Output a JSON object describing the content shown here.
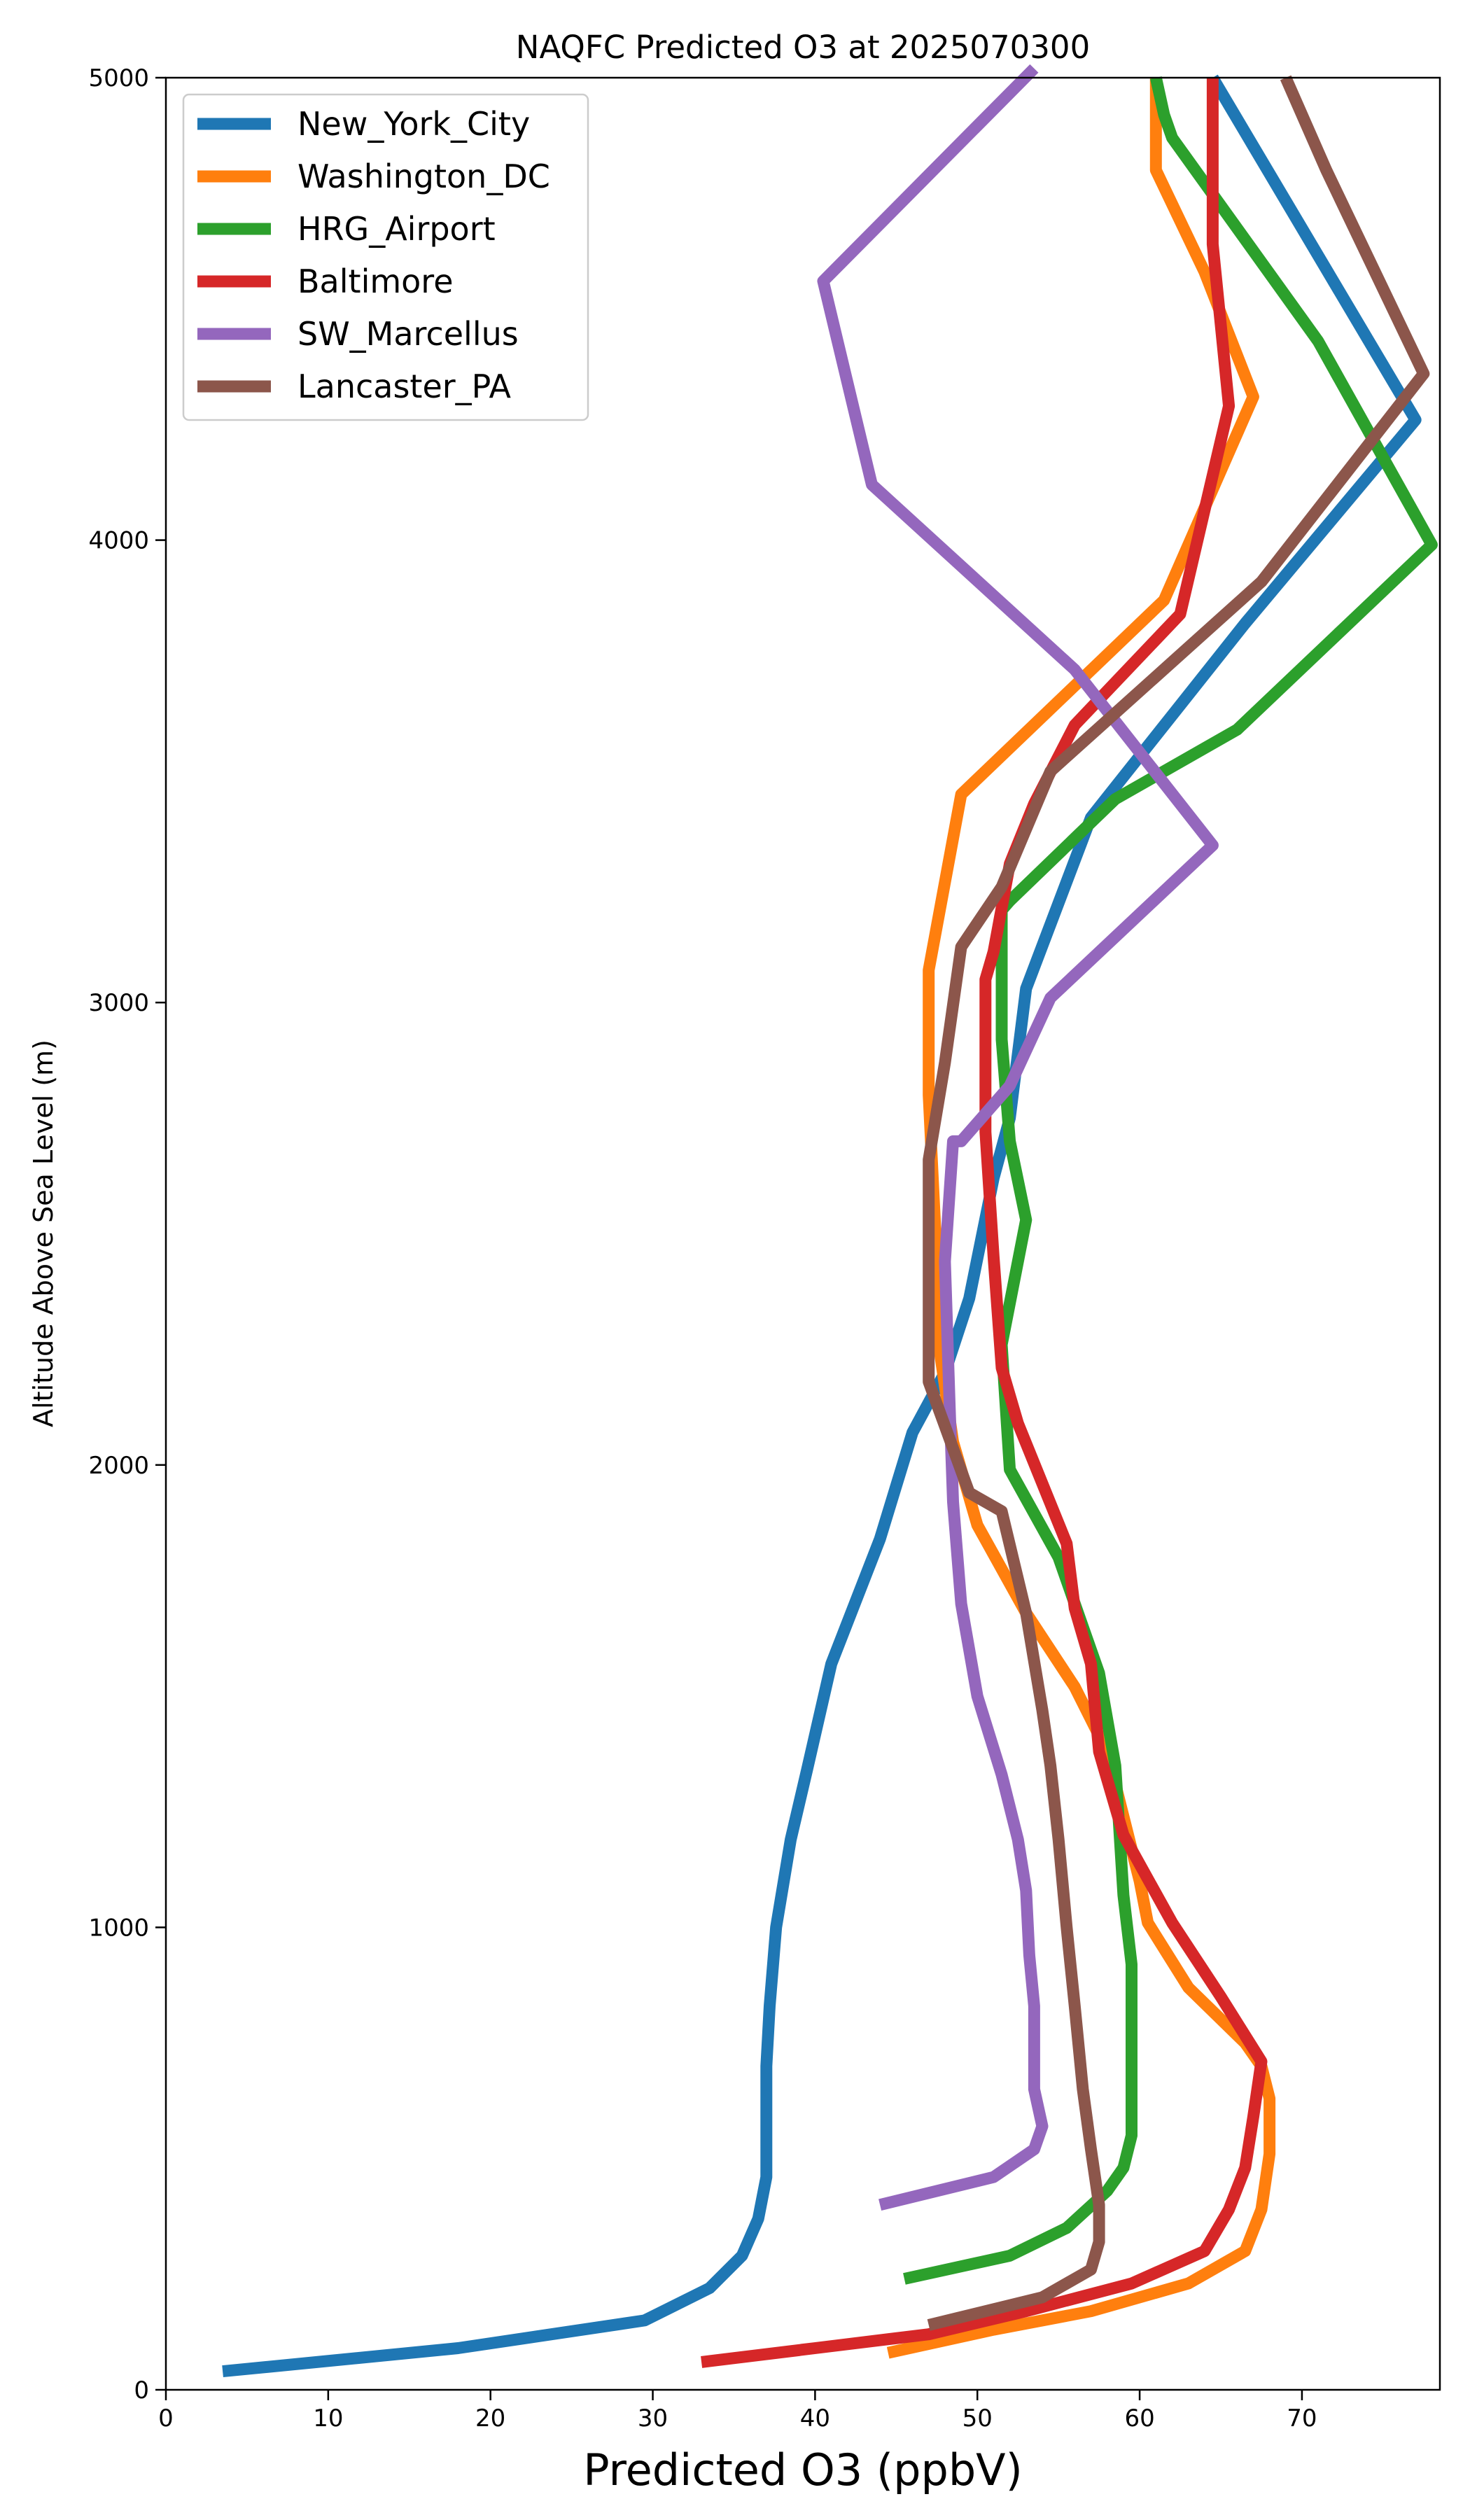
{
  "chart_data": {
    "type": "line",
    "title": "NAQFC Predicted O3 at 2025070300",
    "xlabel": "Predicted O3 (ppbV)",
    "ylabel": "Altitude Above Sea Level (m)",
    "xlim": [
      0,
      78.5
    ],
    "ylim": [
      0,
      5000
    ],
    "xticks": [
      "0",
      "10",
      "20",
      "30",
      "40",
      "50",
      "60",
      "70"
    ],
    "xtick_values": [
      0,
      10,
      20,
      30,
      40,
      50,
      60,
      70
    ],
    "yticks": [
      "0",
      "1000",
      "2000",
      "3000",
      "4000",
      "5000"
    ],
    "ytick_values": [
      0,
      1000,
      2000,
      3000,
      4000,
      5000
    ],
    "grid": false,
    "legend": "top-left",
    "series": [
      {
        "name": "New_York_City",
        "color": "#1f77b4",
        "x": [
          3.5,
          18,
          29.5,
          33.5,
          35.5,
          36.5,
          37,
          37,
          37,
          37.2,
          37.6,
          38.5,
          39.5,
          41,
          44,
          46,
          48,
          49.5,
          51,
          52,
          53,
          57,
          66.5,
          77,
          64.5
        ],
        "y": [
          40,
          90,
          150,
          220,
          290,
          370,
          460,
          570,
          700,
          830,
          1000,
          1190,
          1340,
          1570,
          1840,
          2070,
          2200,
          2360,
          2620,
          2750,
          3030,
          3400,
          3820,
          4260,
          5000
        ]
      },
      {
        "name": "Washington_DC",
        "color": "#ff7f0e",
        "x": [
          44.5,
          51,
          57,
          63,
          66.5,
          67.5,
          68,
          68,
          67.5,
          66.5,
          63,
          60.5,
          60,
          58,
          56,
          53,
          50,
          48.5,
          47.5,
          47.5,
          47,
          47,
          47,
          49,
          61.5,
          67,
          64,
          61,
          61,
          61
        ],
        "y": [
          80,
          130,
          170,
          230,
          300,
          390,
          510,
          630,
          700,
          750,
          870,
          1010,
          1100,
          1380,
          1520,
          1680,
          1870,
          2050,
          2290,
          2440,
          2800,
          3070,
          3070,
          3450,
          3870,
          4310,
          4580,
          4800,
          4900,
          5000
        ]
      },
      {
        "name": "HRG_Airport",
        "color": "#2ca02c",
        "x": [
          45.5,
          52,
          55.5,
          58,
          59,
          59.5,
          59.5,
          59.5,
          59.5,
          59,
          58.5,
          57.5,
          55,
          52,
          51.5,
          53,
          52,
          51.5,
          51.5,
          52,
          58.5,
          66,
          78,
          71,
          62,
          61.5,
          61
        ],
        "y": [
          240,
          290,
          350,
          430,
          480,
          550,
          650,
          780,
          920,
          1070,
          1350,
          1550,
          1800,
          1990,
          2260,
          2530,
          2700,
          2920,
          3200,
          3220,
          3440,
          3590,
          3990,
          4430,
          4870,
          4920,
          5000
        ]
      },
      {
        "name": "Baltimore",
        "color": "#d62728",
        "x": [
          33,
          40,
          47,
          53,
          59.5,
          64,
          65.5,
          66.5,
          67,
          67.5,
          65,
          62,
          59,
          57.5,
          57,
          56,
          55.5,
          52.5,
          51.5,
          51,
          50.5,
          50.5,
          51,
          52,
          53.5,
          56,
          62.5,
          65.5,
          64.5,
          64.5,
          64.5
        ],
        "y": [
          60,
          90,
          120,
          170,
          230,
          300,
          390,
          480,
          590,
          710,
          850,
          1010,
          1200,
          1380,
          1570,
          1690,
          1830,
          2090,
          2210,
          2450,
          2720,
          3050,
          3110,
          3300,
          3430,
          3600,
          3840,
          4290,
          4640,
          4780,
          5000
        ]
      },
      {
        "name": "SW_Marcellus",
        "color": "#9467bd",
        "x": [
          44,
          51,
          53.5,
          54,
          53.5,
          53.5,
          53.5,
          53.2,
          53,
          52.5,
          51.5,
          50,
          49,
          48.5,
          48.3,
          48,
          48.5,
          49,
          52,
          54.5,
          64.5,
          56,
          43.5,
          40.5,
          53.5
        ],
        "y": [
          400,
          460,
          520,
          570,
          650,
          740,
          830,
          940,
          1080,
          1190,
          1330,
          1500,
          1700,
          1920,
          2120,
          2440,
          2700,
          2700,
          2820,
          3010,
          3340,
          3720,
          4120,
          4560,
          5020
        ]
      },
      {
        "name": "Lancaster_PA",
        "color": "#8c564b",
        "x": [
          47,
          54,
          57,
          57.5,
          57.5,
          57,
          56.5,
          56,
          55.5,
          55,
          54.5,
          54,
          53,
          51.5,
          49.5,
          47,
          47,
          47,
          48,
          49,
          51.5,
          54.5,
          67.5,
          77.5,
          71.5,
          69
        ],
        "y": [
          140,
          200,
          260,
          320,
          400,
          520,
          650,
          830,
          1000,
          1190,
          1350,
          1470,
          1680,
          1900,
          1940,
          2180,
          2440,
          2660,
          2870,
          3120,
          3250,
          3500,
          3910,
          4360,
          4800,
          5000
        ]
      }
    ]
  }
}
